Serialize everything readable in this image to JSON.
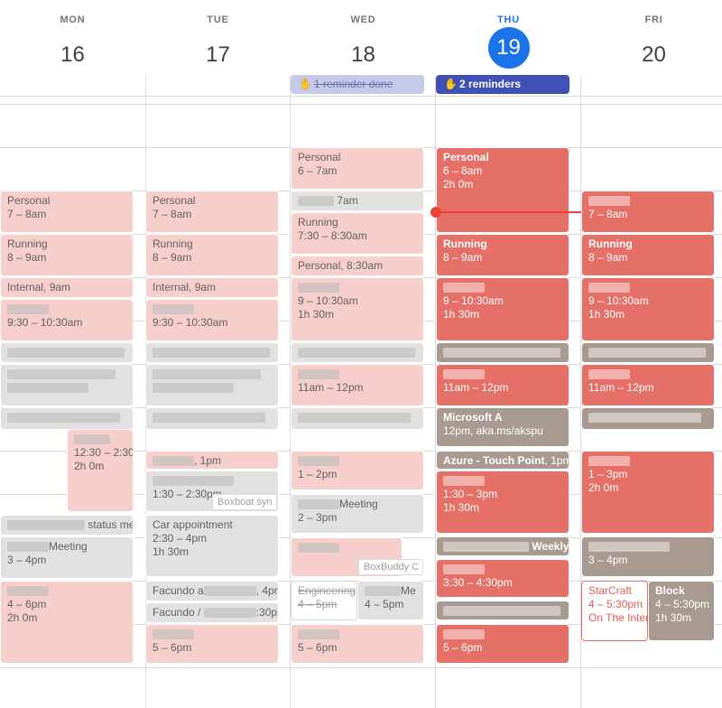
{
  "days": [
    {
      "name": "MON",
      "num": "16"
    },
    {
      "name": "TUE",
      "num": "17"
    },
    {
      "name": "WED",
      "num": "18"
    },
    {
      "name": "THU",
      "num": "19"
    },
    {
      "name": "FRI",
      "num": "20"
    }
  ],
  "reminders": {
    "wed": "1 reminder done",
    "thu": "2 reminders"
  },
  "events": {
    "mon_personal_title": "Personal",
    "mon_personal_time": "7 – 8am",
    "mon_running_title": "Running",
    "mon_running_time": "8 – 9am",
    "mon_internal_title": "Internal",
    "mon_internal_time": ", 9am",
    "mon_e930_time": "9:30 – 10:30am",
    "mon_status_time": "status me",
    "mon_1230_time": "12:30 – 2:30",
    "mon_1230_dur": "2h 0m",
    "mon_meeting_title": "Meeting",
    "mon_meeting_time": "3 – 4pm",
    "mon_4pm_time": "4 – 6pm",
    "mon_4pm_dur": "2h 0m",
    "tue_personal_title": "Personal",
    "tue_personal_time": "7 – 8am",
    "tue_running_title": "Running",
    "tue_running_time": "8 – 9am",
    "tue_internal_title": "Internal",
    "tue_internal_time": ", 9am",
    "tue_e930_time": "9:30 – 10:30am",
    "tue_1pm_time": ", 1pm",
    "tue_130_time": "1:30 – 2:30pm",
    "tue_boxboat": "Boxboat syn",
    "tue_car_title": "Car appointment",
    "tue_car_time": "2:30 – 4pm",
    "tue_car_dur": "1h 30m",
    "tue_facundo1_title": "Facundo a",
    "tue_facundo1_time": "4pm",
    "tue_facundo2_title": "Facundo /",
    "tue_facundo2_time": ":30pm",
    "tue_5pm_time": "5 – 6pm",
    "wed_personal_title": "Personal",
    "wed_personal_time": "6 – 7am",
    "wed_7am_time": "7am",
    "wed_running_title": "Running",
    "wed_running_time": "7:30 – 8:30am",
    "wed_personal2_title": "Personal",
    "wed_personal2_time": ", 8:30am",
    "wed_9am_time": "9 – 10:30am",
    "wed_9am_dur": "1h 30m",
    "wed_11am_time": "11am – 12pm",
    "wed_1pm_time": "1 – 2pm",
    "wed_meeting_title": "Meeting",
    "wed_meeting_time": "2 – 3pm",
    "wed_boxbuddy": "BoxBuddy C",
    "wed_eng_title": "Engineering",
    "wed_eng_time": "4 – 5pm",
    "wed_me_title": "Me",
    "wed_me_time": "4 – 5pm",
    "wed_5pm_time": "5 – 6pm",
    "thu_personal_title": "Personal",
    "thu_personal_time": "6 – 8am",
    "thu_personal_dur": "2h 0m",
    "thu_running_title": "Running",
    "thu_running_time": "8 – 9am",
    "thu_9am_time": "9 – 10:30am",
    "thu_9am_dur": "1h 30m",
    "thu_11am_time": "11am – 12pm",
    "thu_ms_title": "Microsoft A",
    "thu_ms_time": "12pm, aka.ms/akspu",
    "thu_azure_title": "Azure - Touch Point",
    "thu_azure_time": ", 1pm,",
    "thu_130_time": "1:30 – 3pm",
    "thu_130_dur": "1h 30m",
    "thu_weekly_title": "Weekly",
    "thu_330_time": "3:30 – 4:30pm",
    "thu_5pm_time": "5 – 6pm",
    "fri_7am_time": "7 – 8am",
    "fri_running_title": "Running",
    "fri_running_time": "8 – 9am",
    "fri_9am_time": "9 – 10:30am",
    "fri_9am_dur": "1h 30m",
    "fri_11am_time": "11am – 12pm",
    "fri_1pm_time": "1 – 3pm",
    "fri_1pm_dur": "2h 0m",
    "fri_3pm_time": "3 – 4pm",
    "fri_starcraft_title": "StarCraft",
    "fri_starcraft_time": "4 – 5:30pm",
    "fri_starcraft_loc": "On The Inter",
    "fri_block_title": "Block",
    "fri_block_time": "4 – 5:30pm",
    "fri_block_dur": "1h 30m"
  },
  "colors": {
    "today": "#1a73e8",
    "event_red": "#e57068",
    "event_pale": "#f6cfcc",
    "event_brown": "#a89a91",
    "event_gray": "#e3e1df",
    "now_line": "#ea4335",
    "reminder_active": "#3f51b5"
  },
  "icons": [
    "reminder-hand-icon"
  ]
}
